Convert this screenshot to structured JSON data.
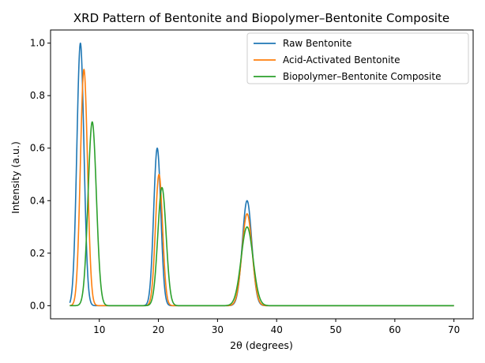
{
  "chart_data": {
    "type": "line",
    "title": "XRD Pattern of Bentonite and Biopolymer–Bentonite Composite",
    "xlabel": "2θ (degrees)",
    "ylabel": "Intensity (a.u.)",
    "xlim": [
      1.75,
      73.25
    ],
    "ylim": [
      -0.05,
      1.05
    ],
    "xticks": [
      10,
      20,
      30,
      40,
      50,
      60,
      70
    ],
    "yticks": [
      0.0,
      0.2,
      0.4,
      0.6,
      0.8,
      1.0
    ],
    "xtick_labels": [
      "10",
      "20",
      "30",
      "40",
      "50",
      "60",
      "70"
    ],
    "ytick_labels": [
      "0.0",
      "0.2",
      "0.4",
      "0.6",
      "0.8",
      "1.0"
    ],
    "x_range": [
      5,
      70
    ],
    "grid": false,
    "legend_position": "top-right",
    "series": [
      {
        "name": "Raw Bentonite",
        "color": "#1f77b4",
        "peaks": [
          {
            "center": 6.8,
            "height": 1.0,
            "sigma": 0.6
          },
          {
            "center": 19.8,
            "height": 0.6,
            "sigma": 0.6
          },
          {
            "center": 35.0,
            "height": 0.4,
            "sigma": 0.8
          }
        ]
      },
      {
        "name": "Acid-Activated Bentonite",
        "color": "#ff7f0e",
        "peaks": [
          {
            "center": 7.4,
            "height": 0.9,
            "sigma": 0.6
          },
          {
            "center": 20.1,
            "height": 0.5,
            "sigma": 0.6
          },
          {
            "center": 35.0,
            "height": 0.35,
            "sigma": 0.85
          }
        ]
      },
      {
        "name": "Biopolymer–Bentonite Composite",
        "color": "#2ca02c",
        "peaks": [
          {
            "center": 8.8,
            "height": 0.7,
            "sigma": 0.7
          },
          {
            "center": 20.6,
            "height": 0.45,
            "sigma": 0.7
          },
          {
            "center": 35.0,
            "height": 0.3,
            "sigma": 1.0
          }
        ]
      }
    ]
  }
}
